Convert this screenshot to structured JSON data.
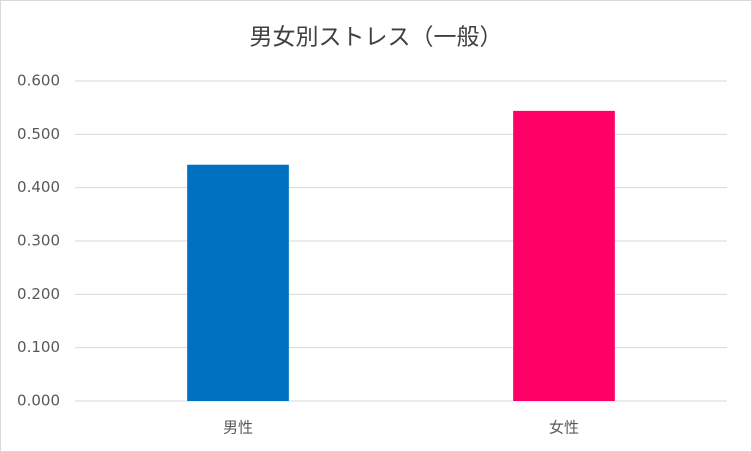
{
  "chart_data": {
    "type": "bar",
    "title": "男女別ストレス（一般）",
    "categories": [
      "男性",
      "女性"
    ],
    "values": [
      0.443,
      0.544
    ],
    "colors": [
      "#0070c0",
      "#ff0066"
    ],
    "ylim": [
      0,
      0.6
    ],
    "yticks": [
      {
        "value": 0,
        "label": "0.000"
      },
      {
        "value": 0.1,
        "label": "0.100"
      },
      {
        "value": 0.2,
        "label": "0.200"
      },
      {
        "value": 0.3,
        "label": "0.300"
      },
      {
        "value": 0.4,
        "label": "0.400"
      },
      {
        "value": 0.5,
        "label": "0.500"
      },
      {
        "value": 0.6,
        "label": "0.600"
      }
    ],
    "grid": true
  }
}
